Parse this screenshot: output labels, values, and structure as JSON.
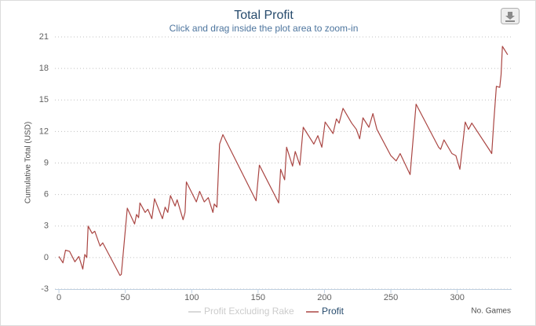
{
  "chart_data": {
    "type": "line",
    "title": "Total Profit",
    "subtitle": "Click and drag inside the plot area to zoom-in",
    "y_axis_label": "Cumulative Total (USD)",
    "x_axis_label": "No. Games",
    "xlim": [
      -3,
      341
    ],
    "xticks": [
      0,
      50,
      100,
      150,
      200,
      250,
      300
    ],
    "ylim": [
      -3,
      21
    ],
    "yticks": [
      -3,
      0,
      3,
      6,
      9,
      12,
      15,
      18,
      21
    ],
    "grid": true,
    "legend": "bottom",
    "x": [
      0,
      3,
      5,
      8,
      12,
      15,
      18,
      19.5,
      21,
      22,
      25,
      27,
      31,
      33,
      46,
      47,
      51.5,
      57,
      58.5,
      60,
      61,
      65,
      67,
      70,
      72,
      78,
      80,
      82,
      84,
      87.5,
      89,
      93.5,
      95,
      96,
      103.5,
      106,
      109.5,
      112.5,
      116,
      117,
      119,
      121,
      123.5,
      148.5,
      151,
      165.5,
      167,
      170,
      171.5,
      176,
      178,
      181.5,
      184,
      192,
      195,
      198,
      200.5,
      206.5,
      209,
      211,
      214,
      220.5,
      224,
      226.5,
      229,
      233.5,
      236.5,
      239.5,
      250,
      254,
      257,
      264.5,
      269,
      286,
      287.5,
      290,
      296,
      299,
      302,
      306,
      308.5,
      311,
      324.5,
      326,
      327.5,
      329.5,
      332,
      333,
      334,
      338
    ],
    "series": [
      {
        "name": "Profit Excluding Rake",
        "color": "#cccccc",
        "visible": false
      },
      {
        "name": "Profit",
        "color": "#aa4643",
        "values": [
          0.1,
          -0.5,
          0.7,
          0.6,
          -0.4,
          0.1,
          -1.1,
          0.3,
          0,
          3,
          2.3,
          2.5,
          1.1,
          1.4,
          -1.7,
          -1.6,
          4.7,
          3.2,
          4.1,
          3.8,
          5.2,
          4.3,
          4.6,
          3.7,
          5.6,
          3.7,
          4.8,
          4.3,
          5.9,
          4.9,
          5.5,
          3.6,
          4.3,
          7.2,
          5.3,
          6.3,
          5.3,
          5.7,
          4.3,
          5.1,
          4.8,
          10.8,
          11.7,
          5.4,
          8.8,
          5.2,
          8.4,
          7.4,
          10.5,
          8.7,
          10.1,
          8.8,
          12.4,
          10.8,
          11.6,
          10.5,
          12.9,
          11.8,
          13.2,
          12.8,
          14.2,
          12.8,
          12.2,
          11.3,
          13.3,
          12.4,
          13.7,
          12.2,
          9.7,
          9.2,
          9.9,
          7.9,
          14.6,
          10.5,
          10.3,
          11.2,
          9.9,
          9.7,
          8.4,
          12.9,
          12.2,
          12.8,
          10.2,
          9.9,
          12.9,
          16.3,
          16.2,
          17.4,
          20.1,
          19.3
        ]
      }
    ]
  }
}
